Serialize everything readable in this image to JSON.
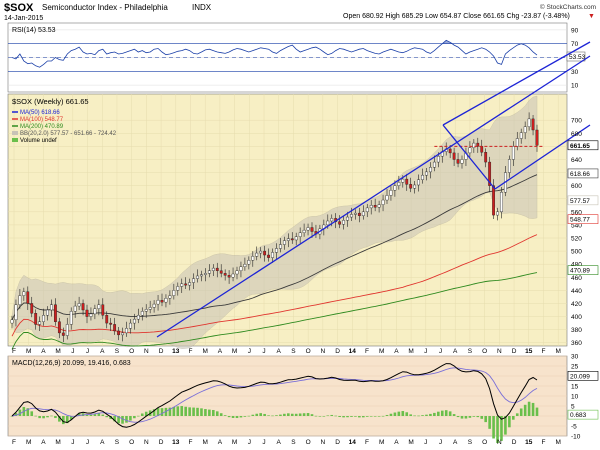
{
  "header": {
    "symbol": "$SOX",
    "name": "Semiconductor Index - Philadelphia",
    "exchange": "INDX",
    "date": "14-Jan-2015",
    "quote": "Open 680.92  High 685.29  Low 654.87  Close 661.65  Chg -23.87 (-3.48%)",
    "quote_arrow": "▼",
    "watermark": "© StockCharts.com"
  },
  "colors": {
    "background_price": "#f7efc4",
    "background_panel": "#f7e3cc",
    "trendline": "#1d24d6",
    "ma50": "#3b3b3b",
    "ma100": "#e0362f",
    "ma200": "#2f8a1f",
    "band": "#c8c3b6",
    "candle_up": "#ffffff",
    "candle_down": "#cc1f1f",
    "rsi": "#1a3fa8",
    "macd": "#000000",
    "signal": "#7a6fd8",
    "histogram": "#6abf4b"
  },
  "chart_data": [
    {
      "type": "line",
      "panel": "rsi",
      "label": "RSI(14) 53.53",
      "ylim": [
        0,
        100
      ],
      "yticks": [
        10,
        30,
        50,
        70,
        90
      ],
      "reference_lines": [
        30,
        70
      ],
      "last_value_label": "53.53",
      "last_value": 53.53,
      "values": [
        50,
        48,
        55,
        45,
        41,
        42,
        38,
        36,
        40,
        45,
        45,
        50,
        47,
        46,
        55,
        60,
        62,
        65,
        58,
        55,
        56,
        54,
        60,
        62,
        55,
        57,
        58,
        55,
        56,
        58,
        60,
        62,
        58,
        60,
        57,
        58,
        62,
        63,
        58,
        54,
        55,
        57,
        59,
        60,
        62,
        60,
        56,
        55,
        58,
        61,
        62,
        60,
        58,
        57,
        56,
        58,
        61,
        63,
        62,
        60,
        58,
        60,
        62,
        64,
        63,
        62,
        58,
        56,
        60,
        63,
        66,
        68,
        62,
        58,
        60,
        62,
        64,
        65,
        62,
        58,
        54,
        56,
        60,
        63,
        62,
        60,
        58,
        60,
        62,
        63,
        60,
        58,
        56,
        55,
        58,
        60,
        62,
        60,
        58,
        57,
        59,
        62,
        64,
        63,
        62,
        58,
        56,
        60,
        65,
        70,
        75,
        72,
        68,
        65,
        60,
        55,
        58,
        60,
        62,
        64,
        62,
        58,
        52,
        42,
        40,
        55,
        60,
        64,
        68,
        70,
        68,
        64,
        58,
        53.53
      ]
    },
    {
      "type": "line",
      "panel": "price",
      "label": "$SOX (Weekly) 661.65",
      "ylim": [
        355,
        740
      ],
      "yticks": [
        360,
        380,
        400,
        420,
        440,
        460,
        480,
        500,
        520,
        540,
        560,
        580,
        600,
        620,
        640,
        660,
        680,
        700
      ],
      "x_labels": [
        "F",
        "M",
        "A",
        "M",
        "J",
        "J",
        "A",
        "S",
        "O",
        "N",
        "D",
        "13",
        "F",
        "M",
        "A",
        "M",
        "J",
        "J",
        "A",
        "S",
        "O",
        "N",
        "D",
        "14",
        "F",
        "M",
        "A",
        "M",
        "J",
        "J",
        "A",
        "S",
        "O",
        "N",
        "D",
        "15",
        "F",
        "M"
      ],
      "close": [
        395,
        418,
        432,
        438,
        420,
        405,
        388,
        392,
        402,
        410,
        418,
        392,
        375,
        371,
        388,
        408,
        416,
        420,
        410,
        400,
        404,
        412,
        418,
        402,
        390,
        388,
        378,
        372,
        375,
        382,
        390,
        396,
        402,
        408,
        411,
        414,
        419,
        425,
        422,
        428,
        432,
        440,
        446,
        450,
        448,
        452,
        458,
        462,
        464,
        466,
        470,
        474,
        470,
        466,
        463,
        460,
        465,
        470,
        476,
        480,
        486,
        492,
        497,
        500,
        494,
        490,
        498,
        504,
        510,
        516,
        519,
        517,
        522,
        528,
        532,
        536,
        530,
        526,
        534,
        540,
        546,
        550,
        545,
        541,
        547,
        552,
        556,
        558,
        554,
        560,
        566,
        570,
        567,
        571,
        578,
        585,
        593,
        600,
        605,
        610,
        602,
        596,
        601,
        609,
        616,
        621,
        628,
        636,
        645,
        652,
        656,
        650,
        640,
        634,
        640,
        650,
        658,
        665,
        660,
        651,
        636,
        600,
        555,
        560,
        590,
        620,
        640,
        660,
        672,
        681,
        690,
        702,
        685,
        661.65
      ],
      "series": [
        {
          "name": "MA(50) 618.66",
          "last_value": 618.66
        },
        {
          "name": "MA(100) 548.77",
          "last_value": 548.77
        },
        {
          "name": "MA(200) 470.89",
          "last_value": 470.89
        },
        {
          "name": "BB(20,2.0) 577.57 - 651.66 - 724.42",
          "lower": 577.57,
          "middle": 651.66,
          "upper": 724.42
        },
        {
          "name": "Volume undef"
        }
      ],
      "horizontal_reference": 660,
      "right_axis_labels": [
        "661.65",
        "618.66",
        "577.57",
        "548.77",
        "470.89"
      ],
      "right_axis_values": [
        661.65,
        618.66,
        577.57,
        548.77,
        470.89
      ]
    },
    {
      "type": "line",
      "panel": "macd",
      "label": "MACD(12,26,9) 20.099, 19.416, 0.683",
      "ylim": [
        -10,
        30
      ],
      "yticks": [
        -10,
        -5,
        0,
        5,
        10,
        15,
        20,
        25,
        30
      ],
      "right_axis_labels": [
        "20.099",
        "0.683"
      ],
      "right_axis_values": [
        20.099,
        0.683
      ],
      "x_labels": [
        "F",
        "M",
        "A",
        "M",
        "J",
        "J",
        "A",
        "S",
        "O",
        "N",
        "D",
        "13",
        "F",
        "M",
        "A",
        "M",
        "J",
        "J",
        "A",
        "S",
        "O",
        "N",
        "D",
        "14",
        "F",
        "M",
        "A",
        "M",
        "J",
        "J",
        "A",
        "S",
        "O",
        "N",
        "D",
        "15",
        "F",
        "M"
      ]
    }
  ]
}
